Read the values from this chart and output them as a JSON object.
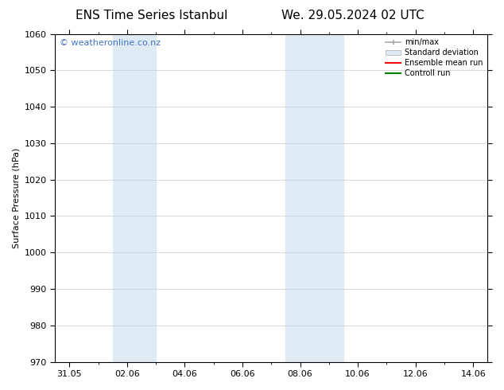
{
  "title_left": "ENS Time Series Istanbul",
  "title_right": "We. 29.05.2024 02 UTC",
  "ylabel": "Surface Pressure (hPa)",
  "ylim": [
    970,
    1060
  ],
  "yticks": [
    970,
    980,
    990,
    1000,
    1010,
    1020,
    1030,
    1040,
    1050,
    1060
  ],
  "xtick_labels": [
    "31.05",
    "02.06",
    "04.06",
    "06.06",
    "08.06",
    "10.06",
    "12.06",
    "14.06"
  ],
  "xtick_positions": [
    0,
    2,
    4,
    6,
    8,
    10,
    12,
    14
  ],
  "xlim": [
    -0.5,
    14.5
  ],
  "shaded_bands": [
    {
      "x_start": 1.5,
      "x_end": 3.0
    },
    {
      "x_start": 7.5,
      "x_end": 9.5
    }
  ],
  "shaded_color": "#deeaf4",
  "background_color": "#ffffff",
  "watermark_text": "© weatheronline.co.nz",
  "watermark_color": "#4472c4",
  "watermark_fontsize": 8,
  "legend_entries": [
    {
      "label": "min/max",
      "color": "#aaaaaa",
      "lw": 1.2,
      "style": "solid"
    },
    {
      "label": "Standard deviation",
      "color": "#deeaf4",
      "lw": 8,
      "style": "solid"
    },
    {
      "label": "Ensemble mean run",
      "color": "#ff0000",
      "lw": 1.5,
      "style": "solid"
    },
    {
      "label": "Controll run",
      "color": "#008000",
      "lw": 1.5,
      "style": "solid"
    }
  ],
  "title_fontsize": 11,
  "tick_fontsize": 8,
  "ylabel_fontsize": 8,
  "grid_color": "#cccccc",
  "border_color": "#000000",
  "minor_xtick_count": 1
}
